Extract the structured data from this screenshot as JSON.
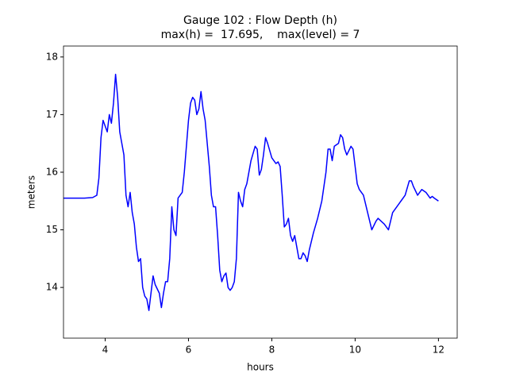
{
  "chart_data": {
    "type": "line",
    "title": "Gauge 102 : Flow Depth (h)",
    "subtitle": "max(h) =  17.695,    max(level) = 7",
    "xlabel": "hours",
    "ylabel": "meters",
    "xlim": [
      3,
      12.45
    ],
    "ylim": [
      13.12,
      18.19
    ],
    "xticks": [
      4,
      6,
      8,
      10,
      12
    ],
    "yticks": [
      14,
      15,
      16,
      17,
      18
    ],
    "grid": false,
    "x": [
      3.0,
      3.5,
      3.7,
      3.8,
      3.85,
      3.9,
      3.95,
      4.0,
      4.05,
      4.1,
      4.15,
      4.2,
      4.25,
      4.3,
      4.35,
      4.4,
      4.45,
      4.5,
      4.55,
      4.6,
      4.65,
      4.7,
      4.75,
      4.8,
      4.85,
      4.9,
      4.95,
      5.0,
      5.05,
      5.1,
      5.15,
      5.2,
      5.3,
      5.35,
      5.4,
      5.45,
      5.5,
      5.55,
      5.6,
      5.65,
      5.7,
      5.75,
      5.8,
      5.85,
      5.9,
      6.0,
      6.05,
      6.1,
      6.15,
      6.2,
      6.25,
      6.3,
      6.35,
      6.4,
      6.45,
      6.5,
      6.55,
      6.6,
      6.65,
      6.7,
      6.75,
      6.8,
      6.85,
      6.9,
      6.95,
      7.0,
      7.05,
      7.1,
      7.15,
      7.2,
      7.25,
      7.3,
      7.35,
      7.4,
      7.5,
      7.6,
      7.65,
      7.7,
      7.75,
      7.8,
      7.85,
      7.9,
      8.0,
      8.1,
      8.15,
      8.2,
      8.25,
      8.3,
      8.35,
      8.4,
      8.45,
      8.5,
      8.55,
      8.6,
      8.65,
      8.7,
      8.75,
      8.8,
      8.85,
      8.9,
      9.0,
      9.1,
      9.2,
      9.3,
      9.35,
      9.4,
      9.45,
      9.5,
      9.6,
      9.65,
      9.7,
      9.75,
      9.8,
      9.9,
      9.95,
      10.0,
      10.05,
      10.1,
      10.2,
      10.3,
      10.4,
      10.5,
      10.55,
      10.7,
      10.8,
      10.9,
      11.0,
      11.1,
      11.2,
      11.3,
      11.35,
      11.4,
      11.5,
      11.55,
      11.6,
      11.7,
      11.8,
      11.85,
      11.9,
      12.0
    ],
    "series": [
      {
        "name": "h",
        "color": "#0000ff",
        "values": [
          15.55,
          15.55,
          15.56,
          15.6,
          15.9,
          16.6,
          16.9,
          16.8,
          16.7,
          17.0,
          16.85,
          17.2,
          17.7,
          17.3,
          16.7,
          16.5,
          16.3,
          15.6,
          15.4,
          15.65,
          15.3,
          15.1,
          14.7,
          14.45,
          14.5,
          14.0,
          13.85,
          13.8,
          13.6,
          13.9,
          14.2,
          14.05,
          13.9,
          13.65,
          13.9,
          14.1,
          14.1,
          14.5,
          15.4,
          15.0,
          14.9,
          15.55,
          15.6,
          15.65,
          16.0,
          16.9,
          17.2,
          17.3,
          17.25,
          17.0,
          17.1,
          17.4,
          17.1,
          16.9,
          16.5,
          16.1,
          15.6,
          15.4,
          15.4,
          14.9,
          14.3,
          14.1,
          14.2,
          14.25,
          14.0,
          13.95,
          14.0,
          14.1,
          14.5,
          15.65,
          15.5,
          15.4,
          15.7,
          15.8,
          16.2,
          16.45,
          16.4,
          15.95,
          16.05,
          16.3,
          16.6,
          16.5,
          16.25,
          16.15,
          16.18,
          16.1,
          15.6,
          15.05,
          15.1,
          15.2,
          14.9,
          14.8,
          14.9,
          14.7,
          14.5,
          14.5,
          14.6,
          14.55,
          14.45,
          14.65,
          14.95,
          15.2,
          15.5,
          16.0,
          16.4,
          16.4,
          16.2,
          16.45,
          16.5,
          16.65,
          16.6,
          16.4,
          16.3,
          16.45,
          16.4,
          16.1,
          15.8,
          15.7,
          15.6,
          15.3,
          15.0,
          15.15,
          15.2,
          15.1,
          15.0,
          15.3,
          15.4,
          15.5,
          15.6,
          15.85,
          15.85,
          15.75,
          15.6,
          15.65,
          15.7,
          15.65,
          15.55,
          15.58,
          15.55,
          15.5
        ]
      }
    ]
  }
}
